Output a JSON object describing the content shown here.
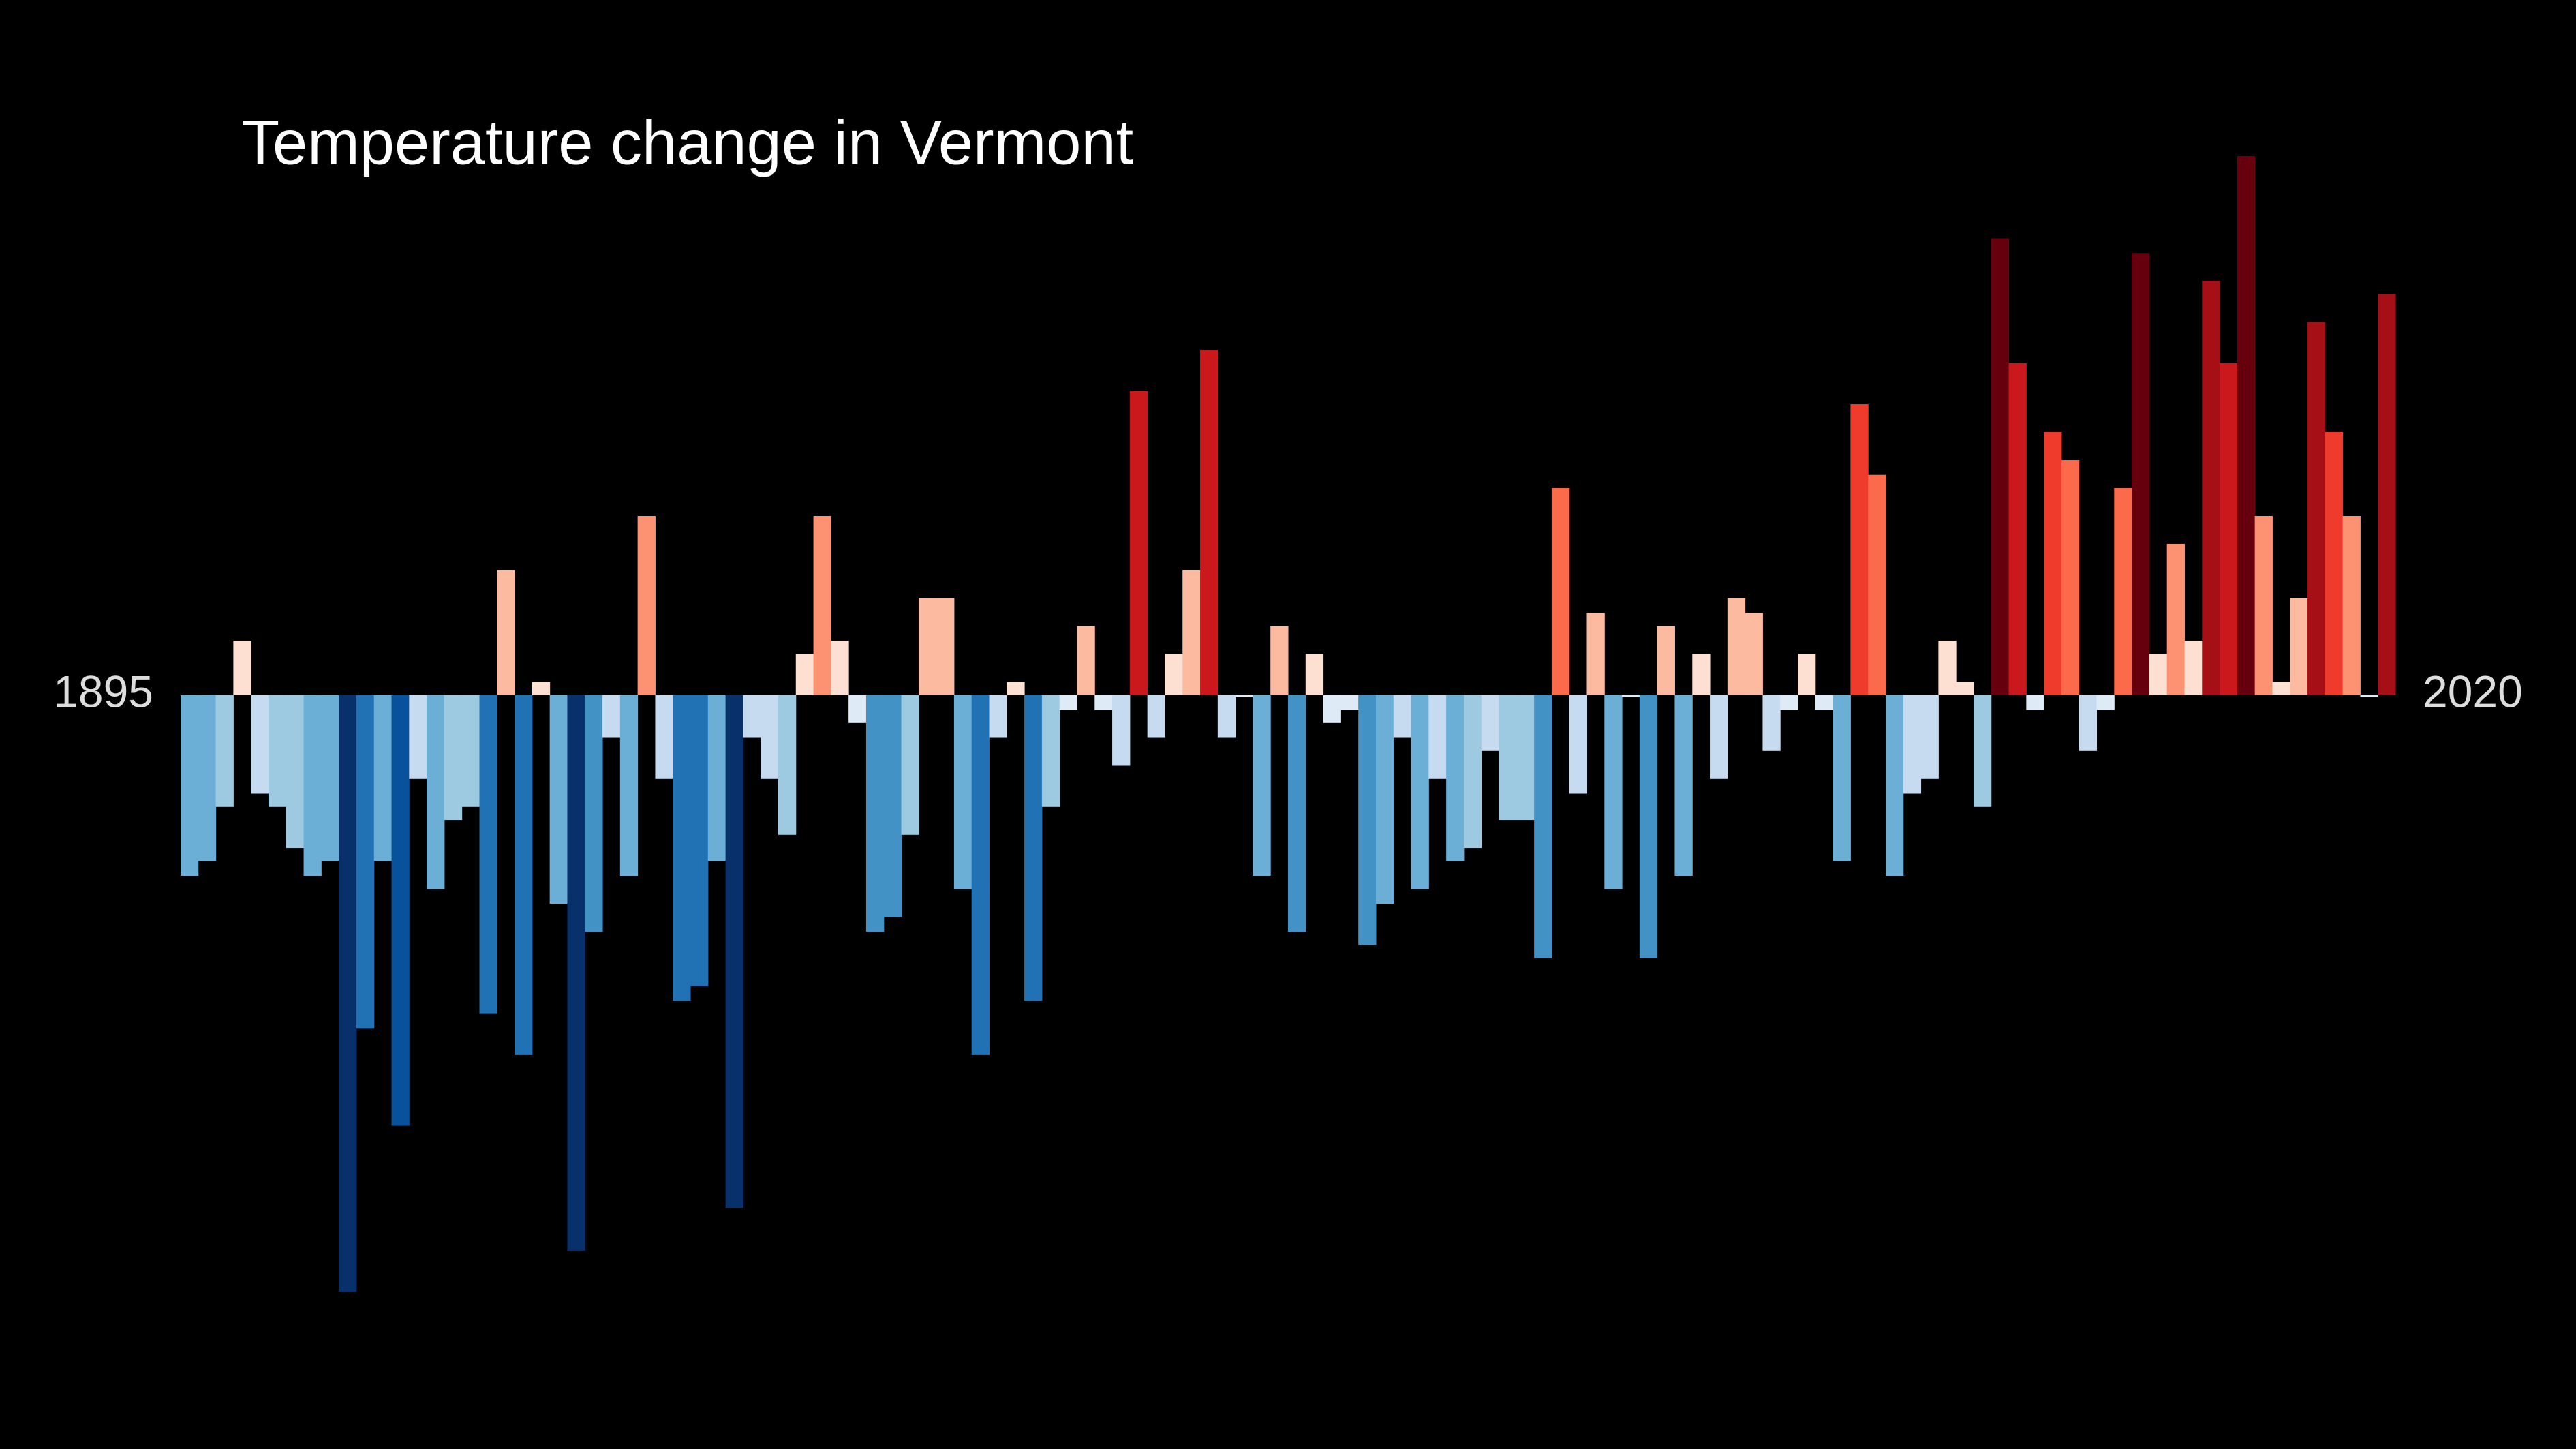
{
  "chart_data": {
    "type": "bar",
    "title": "Temperature change in Vermont",
    "categories": [
      "1895",
      null,
      null,
      null,
      null,
      null,
      null,
      null,
      null,
      null,
      null,
      null,
      null,
      null,
      null,
      null,
      null,
      null,
      null,
      null,
      null,
      null,
      null,
      null,
      null,
      null,
      null,
      null,
      null,
      null,
      null,
      null,
      null,
      null,
      null,
      null,
      null,
      null,
      null,
      null,
      null,
      null,
      null,
      null,
      null,
      null,
      null,
      null,
      null,
      null,
      null,
      null,
      null,
      null,
      null,
      null,
      null,
      null,
      null,
      null,
      null,
      null,
      null,
      null,
      null,
      null,
      null,
      null,
      null,
      null,
      null,
      null,
      null,
      null,
      null,
      null,
      null,
      null,
      null,
      null,
      null,
      null,
      null,
      null,
      null,
      null,
      null,
      null,
      null,
      null,
      null,
      null,
      null,
      null,
      null,
      null,
      null,
      null,
      null,
      null,
      null,
      null,
      null,
      null,
      null,
      null,
      null,
      null,
      null,
      null,
      null,
      null,
      null,
      null,
      null,
      null,
      null,
      null,
      null,
      null,
      null,
      null,
      null,
      null,
      null,
      "2020"
    ],
    "values": [
      -1.1,
      -1.01,
      -0.68,
      0.33,
      -0.6,
      -0.68,
      -0.93,
      -1.1,
      -1.01,
      -3.63,
      -2.03,
      -1.01,
      -2.62,
      -0.51,
      -1.18,
      -0.76,
      -0.68,
      -1.94,
      0.76,
      -2.19,
      0.08,
      -1.27,
      -3.38,
      -1.44,
      -0.26,
      -1.1,
      1.09,
      -0.51,
      -1.86,
      -1.77,
      -1.01,
      -3.12,
      -0.26,
      -0.51,
      -0.85,
      0.25,
      1.09,
      0.33,
      -0.17,
      -1.44,
      -1.35,
      -0.85,
      0.59,
      0.59,
      -1.18,
      -2.19,
      -0.26,
      0.08,
      -1.86,
      -0.68,
      -0.09,
      0.42,
      -0.09,
      -0.43,
      1.85,
      -0.26,
      0.25,
      0.76,
      2.1,
      -0.26,
      -0.01,
      -1.1,
      0.42,
      -1.44,
      0.25,
      -0.17,
      -0.09,
      -1.52,
      -1.27,
      -0.26,
      -1.18,
      -0.51,
      -1.01,
      -0.93,
      -0.34,
      -0.76,
      -0.76,
      -1.6,
      1.26,
      -0.6,
      0.5,
      -1.18,
      -0.01,
      -1.6,
      0.42,
      -1.1,
      0.25,
      -0.51,
      0.59,
      0.5,
      -0.34,
      -0.09,
      0.25,
      -0.09,
      -1.01,
      1.77,
      1.34,
      -1.1,
      -0.6,
      -0.51,
      0.33,
      0.08,
      -0.68,
      2.78,
      2.02,
      -0.09,
      1.6,
      1.43,
      -0.34,
      -0.09,
      1.26,
      2.69,
      0.25,
      0.92,
      0.33,
      2.52,
      2.02,
      3.28,
      1.09,
      0.08,
      0.59,
      2.27,
      1.6,
      1.09,
      -0.01,
      2.44
    ],
    "ylim": [
      -3.7,
      3.4
    ],
    "negative_colors": [
      {
        "value": -3.5,
        "color": "#08306b"
      },
      {
        "value": -2.5,
        "color": "#08519c"
      },
      {
        "value": -1.9,
        "color": "#2171b5"
      },
      {
        "value": -1.5,
        "color": "#4292c6"
      },
      {
        "value": -1.1,
        "color": "#6baed6"
      },
      {
        "value": -0.8,
        "color": "#9ecae1"
      },
      {
        "value": -0.4,
        "color": "#c6dbef"
      },
      {
        "value": 0,
        "color": "#deebf7"
      }
    ],
    "positive_colors": [
      {
        "value": 0.2,
        "color": "#fee0d2"
      },
      {
        "value": 0.6,
        "color": "#fcbba1"
      },
      {
        "value": 1.0,
        "color": "#fc9272"
      },
      {
        "value": 1.35,
        "color": "#fb6a4a"
      },
      {
        "value": 1.65,
        "color": "#ef3b2c"
      },
      {
        "value": 2.05,
        "color": "#cb181d"
      },
      {
        "value": 2.45,
        "color": "#a50f15"
      },
      {
        "value": 2.9,
        "color": "#67000d"
      }
    ],
    "background": "#000000"
  }
}
